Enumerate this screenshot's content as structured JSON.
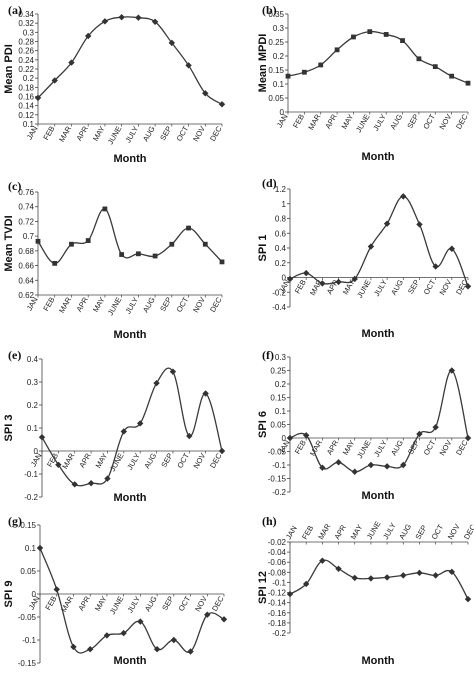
{
  "chart_data": [
    {
      "type": "line",
      "panel_label": "(a)",
      "categories": [
        "JAN",
        "FEB",
        "MAR",
        "APR",
        "MAY",
        "JUNE",
        "JULY",
        "AUG",
        "SEP",
        "OCT",
        "NOV",
        "DEC"
      ],
      "values": [
        0.157,
        0.195,
        0.234,
        0.292,
        0.324,
        0.333,
        0.332,
        0.323,
        0.277,
        0.228,
        0.167,
        0.143
      ],
      "xlabel": "Month",
      "ylabel": "Mean PDI",
      "ylim": [
        0.1,
        0.34
      ],
      "yticks": [
        "0.1",
        "0.12",
        "0.14",
        "0.16",
        "0.18",
        "0.2",
        "0.22",
        "0.24",
        "0.26",
        "0.28",
        "0.3",
        "0.32",
        "0.34"
      ],
      "marker": "diamond",
      "months_at": "bottom"
    },
    {
      "type": "line",
      "panel_label": "(b)",
      "categories": [
        "JAN",
        "FEB",
        "MAR",
        "APR",
        "MAY",
        "JUNE",
        "JULY",
        "AUG",
        "SEP",
        "OCT",
        "NOV",
        "DEC"
      ],
      "values": [
        0.128,
        0.142,
        0.168,
        0.222,
        0.268,
        0.287,
        0.277,
        0.255,
        0.19,
        0.162,
        0.128,
        0.103
      ],
      "xlabel": "Month",
      "ylabel": "Mean MPDI",
      "ylim": [
        0,
        0.35
      ],
      "yticks": [
        "0",
        "0.05",
        "0.1",
        "0.15",
        "0.2",
        "0.25",
        "0.3",
        "0.35"
      ],
      "marker": "square",
      "months_at": "bottom"
    },
    {
      "type": "line",
      "panel_label": "(c)",
      "categories": [
        "JAN",
        "FEB",
        "MAR",
        "APR",
        "MAY",
        "JUNE",
        "JULY",
        "AUG",
        "SEP",
        "OCT",
        "NOV",
        "DEC"
      ],
      "values": [
        0.693,
        0.663,
        0.689,
        0.694,
        0.737,
        0.675,
        0.676,
        0.673,
        0.689,
        0.711,
        0.689,
        0.665
      ],
      "xlabel": "Month",
      "ylabel": "Mean TVDI",
      "ylim": [
        0.62,
        0.76
      ],
      "yticks": [
        "0.62",
        "0.64",
        "0.66",
        "0.68",
        "0.7",
        "0.72",
        "0.74",
        "0.76"
      ],
      "marker": "square",
      "months_at": "bottom"
    },
    {
      "type": "line",
      "panel_label": "(d)",
      "categories": [
        "JAN",
        "FEB",
        "MAR",
        "APR",
        "MAY",
        "JUNE",
        "JULY",
        "AUG",
        "SEP",
        "OCT",
        "NOV",
        "DEC"
      ],
      "values": [
        -0.02,
        0.06,
        -0.08,
        -0.06,
        -0.02,
        0.42,
        0.73,
        1.1,
        0.72,
        0.15,
        0.39,
        -0.12
      ],
      "xlabel": "Month",
      "ylabel": "SPI 1",
      "ylim": [
        -0.4,
        1.2
      ],
      "yticks": [
        "-0.4",
        "-0.2",
        "0",
        "0.2",
        "0.4",
        "0.6",
        "0.8",
        "1",
        "1.2"
      ],
      "marker": "diamond",
      "months_at": "zero"
    },
    {
      "type": "line",
      "panel_label": "(e)",
      "categories": [
        "JAN",
        "FEB",
        "MAR",
        "APR",
        "MAY",
        "JUNE",
        "JULY",
        "AUG",
        "SEP",
        "OCT",
        "NOV",
        "DEC"
      ],
      "values": [
        0.06,
        -0.06,
        -0.145,
        -0.14,
        -0.12,
        0.085,
        0.12,
        0.295,
        0.345,
        0.065,
        0.25,
        0.0
      ],
      "xlabel": "Month",
      "ylabel": "SPI 3",
      "ylim": [
        -0.2,
        0.4
      ],
      "yticks": [
        "-0.2",
        "-0.1",
        "0",
        "0.1",
        "0.2",
        "0.3",
        "0.4"
      ],
      "marker": "diamond",
      "months_at": "zero"
    },
    {
      "type": "line",
      "panel_label": "(f)",
      "categories": [
        "JAN",
        "FEB",
        "MAR",
        "APR",
        "MAY",
        "JUNE",
        "JULY",
        "AUG",
        "SEP",
        "OCT",
        "NOV",
        "DEC"
      ],
      "values": [
        0.0,
        0.01,
        -0.11,
        -0.09,
        -0.125,
        -0.1,
        -0.105,
        -0.1,
        0.015,
        0.04,
        0.25,
        0.0
      ],
      "xlabel": "Month",
      "ylabel": "SPI 6",
      "ylim": [
        -0.2,
        0.3
      ],
      "yticks": [
        "-0.2",
        "-0.15",
        "-0.1",
        "-0.05",
        "0",
        "0.05",
        "0.1",
        "0.15",
        "0.2",
        "0.25",
        "0.3"
      ],
      "marker": "diamond",
      "months_at": "zero"
    },
    {
      "type": "line",
      "panel_label": "(g)",
      "categories": [
        "JAN",
        "FEB",
        "MAR",
        "APR",
        "MAY",
        "JUNE",
        "JULY",
        "AUG",
        "SEP",
        "OCT",
        "NOV",
        "DEC"
      ],
      "values": [
        0.1,
        0.01,
        -0.115,
        -0.12,
        -0.09,
        -0.085,
        -0.06,
        -0.12,
        -0.1,
        -0.125,
        -0.045,
        -0.055
      ],
      "xlabel": "Month",
      "ylabel": "SPI 9",
      "ylim": [
        -0.15,
        0.15
      ],
      "yticks": [
        "-0.15",
        "-0.1",
        "-0.05",
        "0",
        "0.05",
        "0.1",
        "0.15"
      ],
      "marker": "diamond",
      "months_at": "zero"
    },
    {
      "type": "line",
      "panel_label": "(h)",
      "categories": [
        "JAN",
        "FEB",
        "MAR",
        "APR",
        "MAY",
        "JUNE",
        "JULY",
        "AUG",
        "SEP",
        "OCT",
        "NOV",
        "DEC"
      ],
      "values": [
        -0.123,
        -0.103,
        -0.057,
        -0.073,
        -0.091,
        -0.092,
        -0.09,
        -0.086,
        -0.081,
        -0.086,
        -0.079,
        -0.133
      ],
      "xlabel": "Month",
      "ylabel": "SPI 12",
      "ylim": [
        -0.2,
        -0.02
      ],
      "yticks": [
        "-0.2",
        "-0.18",
        "-0.16",
        "-0.14",
        "-0.12",
        "-0.1",
        "-0.08",
        "-0.06",
        "-0.04",
        "-0.02"
      ],
      "marker": "diamond",
      "months_at": "top"
    }
  ]
}
